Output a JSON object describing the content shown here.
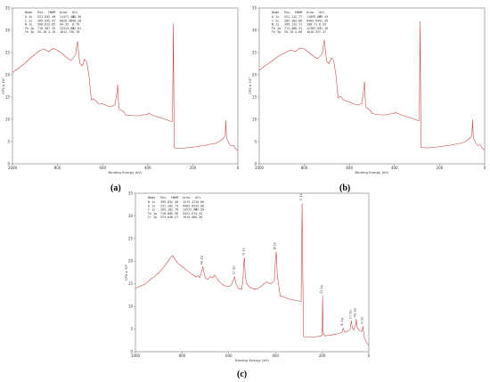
{
  "panel_labels": {
    "a": "(a)",
    "b": "(b)",
    "c": "(c)"
  },
  "colors": {
    "spectrum": "#c23b3b",
    "frame": "#777777",
    "text": "#333333"
  },
  "chart_data": [
    {
      "type": "line",
      "id": "a",
      "xlabel": "Binding Energy (eV)",
      "ylabel": "CPS x 10³",
      "xlim": [
        1000,
        0
      ],
      "ylim": [
        0,
        35
      ],
      "xticks": [
        1000,
        800,
        600,
        400,
        200,
        0
      ],
      "xtick_labels": [
        "1000",
        "800",
        "600",
        "400",
        "200",
        "0"
      ],
      "yticks": [
        0,
        5,
        10,
        15,
        20,
        25,
        30,
        35
      ],
      "ytick_labels": [
        "0",
        "5",
        "10",
        "15",
        "20",
        "25",
        "30",
        "35"
      ],
      "legend": {
        "columns": [
          "Name",
          "Pos.",
          "FWHM",
          "Area",
          "At%"
        ],
        "rows": [
          [
            "O 1s",
            "531.83",
            "2.49",
            "11477.48",
            "40.36"
          ],
          [
            "C 1s",
            "285.64",
            "2.41",
            "6020.48",
            "40.26"
          ],
          [
            "N 1s",
            "398.61",
            "2.65",
            "94.35",
            "0.79"
          ],
          [
            "Fe 2p",
            "710.48",
            "7.15",
            "12313.68",
            "12.81"
          ],
          [
            "Fe 3p",
            "55.18",
            "4.19",
            "1012.73",
            "5.70"
          ]
        ]
      },
      "x": [
        1000,
        980,
        960,
        940,
        920,
        900,
        880,
        860,
        840,
        820,
        800,
        780,
        760,
        740,
        720,
        715,
        711,
        705,
        700,
        690,
        680,
        670,
        660,
        650,
        640,
        630,
        620,
        600,
        580,
        560,
        545,
        536,
        533,
        531,
        528,
        525,
        515,
        505,
        500,
        480,
        460,
        440,
        420,
        400,
        398,
        380,
        360,
        340,
        320,
        300,
        290,
        286,
        284,
        282,
        270,
        250,
        230,
        210,
        190,
        170,
        150,
        130,
        110,
        100,
        90,
        80,
        70,
        60,
        56,
        54,
        50,
        40,
        30,
        20,
        10,
        0
      ],
      "y": [
        20.5,
        21.2,
        22.0,
        22.8,
        23.8,
        24.6,
        25.4,
        25.8,
        25.2,
        25.9,
        25.5,
        24.8,
        23.9,
        23.2,
        24.5,
        26.5,
        27.5,
        24.0,
        22.5,
        22.0,
        23.5,
        22.8,
        19.5,
        14.3,
        14.6,
        14.1,
        13.6,
        13.5,
        13.0,
        12.9,
        13.3,
        16.2,
        17.8,
        15.0,
        12.8,
        12.2,
        12.0,
        11.6,
        11.0,
        10.9,
        10.8,
        10.8,
        11.0,
        11.1,
        11.4,
        11.0,
        10.6,
        10.3,
        10.0,
        9.6,
        9.5,
        31.5,
        14.0,
        3.6,
        3.5,
        3.5,
        3.6,
        3.7,
        3.8,
        4.0,
        4.1,
        4.3,
        4.5,
        4.6,
        4.8,
        5.1,
        5.5,
        6.0,
        6.6,
        9.8,
        5.8,
        4.6,
        4.0,
        4.2,
        3.4,
        3.0
      ]
    },
    {
      "type": "line",
      "id": "b",
      "xlabel": "Binding Energy (eV)",
      "ylabel": "CPS x 10³",
      "xlim": [
        1000,
        0
      ],
      "ylim": [
        0,
        35
      ],
      "xticks": [
        1000,
        800,
        600,
        400,
        200,
        0
      ],
      "xtick_labels": [
        "1000",
        "800",
        "600",
        "400",
        "200",
        "0"
      ],
      "yticks": [
        0,
        5,
        10,
        15,
        20,
        25,
        30,
        35
      ],
      "ytick_labels": [
        "0",
        "5",
        "10",
        "15",
        "20",
        "25",
        "30",
        "35"
      ],
      "legend": {
        "columns": [
          "Name",
          "Pos.",
          "FWHM",
          "Area",
          "At%"
        ],
        "rows": [
          [
            "O 1s",
            "531.11",
            "2.77",
            "11899.66",
            "39.15"
          ],
          [
            "C 1s",
            "285.18",
            "2.88",
            "6403.69",
            "41.39"
          ],
          [
            "N 1s",
            "399.12",
            "2.71",
            "108.71",
            "0.93"
          ],
          [
            "Fe 2p",
            "711.48",
            "6.31",
            "12383.67",
            "11.16"
          ],
          [
            "Fe 3p",
            "55.78",
            "4.68",
            "1016.92",
            "7.37"
          ]
        ]
      },
      "x": [
        1000,
        980,
        960,
        940,
        920,
        900,
        880,
        860,
        840,
        820,
        800,
        780,
        760,
        740,
        720,
        715,
        711,
        705,
        700,
        690,
        680,
        670,
        660,
        650,
        640,
        630,
        620,
        600,
        580,
        560,
        545,
        536,
        533,
        531,
        528,
        525,
        515,
        505,
        500,
        480,
        460,
        440,
        420,
        400,
        398,
        380,
        360,
        340,
        320,
        300,
        290,
        286,
        284,
        282,
        270,
        250,
        230,
        210,
        190,
        170,
        150,
        130,
        110,
        100,
        90,
        80,
        70,
        60,
        56,
        54,
        50,
        40,
        30,
        20,
        10,
        0
      ],
      "y": [
        21.0,
        21.8,
        22.5,
        23.2,
        24.0,
        24.6,
        25.1,
        25.6,
        25.2,
        26.0,
        25.8,
        25.0,
        24.2,
        23.6,
        24.8,
        26.8,
        27.8,
        24.5,
        23.0,
        22.5,
        23.8,
        23.2,
        20.0,
        14.8,
        15.2,
        14.6,
        14.2,
        13.9,
        13.4,
        13.2,
        13.6,
        16.8,
        18.5,
        15.6,
        13.2,
        12.6,
        12.3,
        11.9,
        11.3,
        11.1,
        11.0,
        11.0,
        11.2,
        11.3,
        11.6,
        11.2,
        10.8,
        10.5,
        10.2,
        9.8,
        9.7,
        32.0,
        14.5,
        3.7,
        3.6,
        3.6,
        3.7,
        3.8,
        3.9,
        4.1,
        4.2,
        4.4,
        4.6,
        4.7,
        4.9,
        5.2,
        5.6,
        6.1,
        6.8,
        9.9,
        5.9,
        4.7,
        4.1,
        4.3,
        3.5,
        3.1
      ]
    },
    {
      "type": "line",
      "id": "c",
      "xlabel": "Binding Energy (eV)",
      "ylabel": "CPS x 10³",
      "xlim": [
        1000,
        0
      ],
      "ylim": [
        0,
        35
      ],
      "xticks": [
        1000,
        800,
        600,
        400,
        200,
        0
      ],
      "xtick_labels": [
        "1000",
        "800",
        "600",
        "400",
        "200",
        "0"
      ],
      "yticks": [
        0,
        5,
        10,
        15,
        20,
        25,
        30,
        35
      ],
      "ytick_labels": [
        "0",
        "5",
        "10",
        "15",
        "20",
        "25",
        "30",
        "35"
      ],
      "legend": {
        "columns": [
          "Name",
          "Pos.",
          "FWHM",
          "Area",
          "At%"
        ],
        "rows": [
          [
            "N 1s",
            "399.63",
            "2.46",
            "1213.47",
            "10.66"
          ],
          [
            "O 1s",
            "532.18",
            "2.73",
            "9905.62",
            "33.06"
          ],
          [
            "C 1s",
            "285.18",
            "2.79",
            "13572.98",
            "47.59"
          ],
          [
            "Fe 2p",
            "710.68",
            "5.98",
            "5421.67",
            "4.33"
          ],
          [
            "Cr 2p",
            "574.63",
            "6.27",
            "1915.08",
            "4.36"
          ]
        ]
      },
      "x": [
        1000,
        980,
        960,
        940,
        920,
        900,
        880,
        860,
        850,
        840,
        820,
        800,
        780,
        760,
        740,
        730,
        725,
        720,
        715,
        711,
        705,
        700,
        690,
        680,
        670,
        660,
        650,
        640,
        630,
        620,
        600,
        590,
        580,
        575,
        570,
        560,
        545,
        540,
        536,
        533,
        530,
        525,
        510,
        500,
        480,
        460,
        440,
        420,
        405,
        400,
        397,
        392,
        380,
        360,
        340,
        320,
        300,
        290,
        286,
        283,
        280,
        270,
        250,
        230,
        210,
        200,
        198,
        196,
        190,
        170,
        150,
        130,
        115,
        110,
        105,
        100,
        90,
        80,
        75,
        70,
        65,
        60,
        56,
        54,
        50,
        40,
        30,
        25,
        20,
        10,
        0
      ],
      "y": [
        14.0,
        14.5,
        14.9,
        15.8,
        16.6,
        17.4,
        18.6,
        20.0,
        20.8,
        21.2,
        19.6,
        18.8,
        18.0,
        17.2,
        16.5,
        16.8,
        16.4,
        17.0,
        18.0,
        18.8,
        17.2,
        16.2,
        16.0,
        16.6,
        16.3,
        16.9,
        16.2,
        15.4,
        15.0,
        14.6,
        14.4,
        14.6,
        15.8,
        16.6,
        15.2,
        14.0,
        13.8,
        15.4,
        19.6,
        20.8,
        17.5,
        15.2,
        14.2,
        14.0,
        13.8,
        14.5,
        15.4,
        15.0,
        15.6,
        20.2,
        22.1,
        16.8,
        12.4,
        12.0,
        11.6,
        11.4,
        11.2,
        11.1,
        32.8,
        18.2,
        3.4,
        3.2,
        3.2,
        3.3,
        3.4,
        3.6,
        12.4,
        4.4,
        3.5,
        3.6,
        3.8,
        4.0,
        4.3,
        5.2,
        4.5,
        4.3,
        4.6,
        5.0,
        6.8,
        5.2,
        4.8,
        5.6,
        6.0,
        7.2,
        5.4,
        4.6,
        4.5,
        5.6,
        3.2,
        2.0,
        1.4
      ],
      "peak_labels": [
        {
          "x": 286,
          "y": 33.4,
          "text": "C 1s"
        },
        {
          "x": 533,
          "y": 21.3,
          "text": "O 1s"
        },
        {
          "x": 398,
          "y": 22.6,
          "text": "N 1s"
        },
        {
          "x": 711,
          "y": 19.3,
          "text": "Fe 2p"
        },
        {
          "x": 574,
          "y": 17.1,
          "text": "Cr 2p"
        },
        {
          "x": 198,
          "y": 12.9,
          "text": "Cl 2p"
        },
        {
          "x": 75,
          "y": 7.3,
          "text": "Cr 3p"
        },
        {
          "x": 56,
          "y": 7.7,
          "text": "Fe 3p"
        },
        {
          "x": 110,
          "y": 5.7,
          "text": "Si 2p"
        },
        {
          "x": 25,
          "y": 6.1,
          "text": "O 2s"
        }
      ]
    }
  ]
}
